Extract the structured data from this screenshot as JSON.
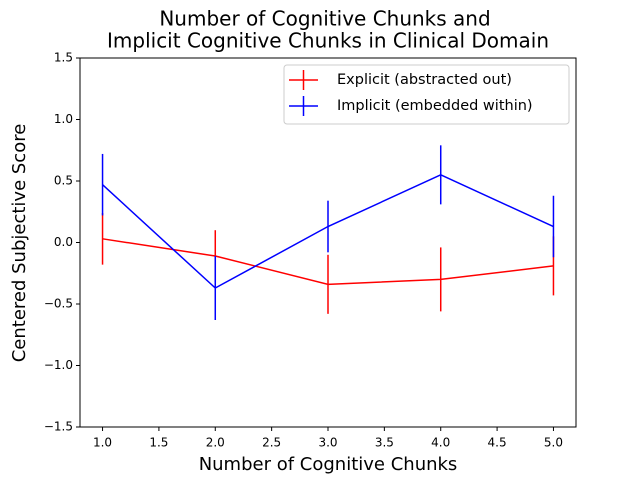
{
  "chart_data": {
    "type": "line",
    "title_lines": [
      "Number of Cognitive Chunks and",
      "Implicit Cognitive Chunks in Clinical Domain"
    ],
    "xlabel": "Number of Cognitive Chunks",
    "ylabel": "Centered Subjective Score",
    "xlim": [
      0.8,
      5.2
    ],
    "ylim": [
      -1.5,
      1.5
    ],
    "x_ticks": [
      1.0,
      1.5,
      2.0,
      2.5,
      3.0,
      3.5,
      4.0,
      4.5,
      5.0
    ],
    "x_tick_labels": [
      "1.0",
      "1.5",
      "2.0",
      "2.5",
      "3.0",
      "3.5",
      "4.0",
      "4.5",
      "5.0"
    ],
    "y_ticks": [
      -1.5,
      -1.0,
      -0.5,
      0.0,
      0.5,
      1.0,
      1.5
    ],
    "y_tick_labels": [
      "−1.5",
      "−1.0",
      "−0.5",
      "0.0",
      "0.5",
      "1.0",
      "1.5"
    ],
    "grid": false,
    "legend_position": "top-right",
    "series": [
      {
        "name": "Explicit (abstracted out)",
        "color": "#ff0000",
        "x": [
          1,
          2,
          3,
          4,
          5
        ],
        "y": [
          0.03,
          -0.11,
          -0.34,
          -0.3,
          -0.19
        ],
        "err": [
          0.21,
          0.21,
          0.24,
          0.26,
          0.24
        ]
      },
      {
        "name": "Implicit (embedded within)",
        "color": "#0000ff",
        "x": [
          1,
          2,
          3,
          4,
          5
        ],
        "y": [
          0.47,
          -0.37,
          0.13,
          0.55,
          0.13
        ],
        "err": [
          0.25,
          0.26,
          0.21,
          0.24,
          0.25
        ]
      }
    ]
  }
}
